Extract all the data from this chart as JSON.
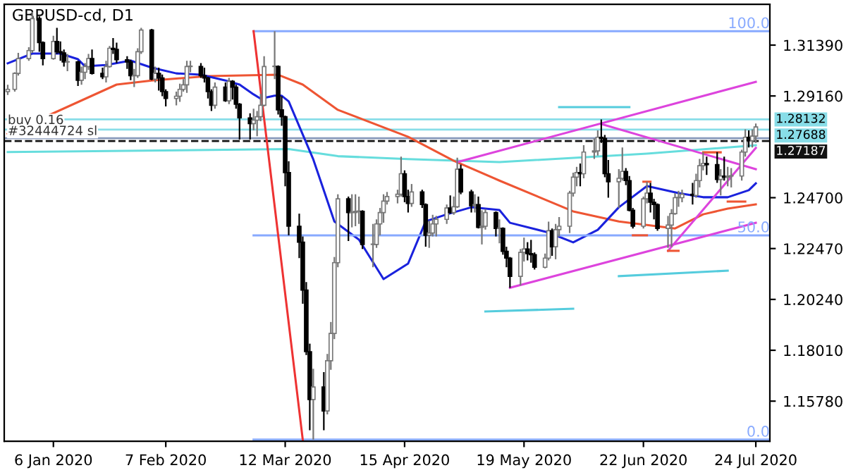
{
  "chart_data": {
    "type": "candlestick",
    "title": "GBPUSD-cd, D1",
    "x": [
      "2019-12-24",
      "2019-12-26",
      "2019-12-27",
      "2019-12-30",
      "2019-12-31",
      "2020-01-02",
      "2020-01-03",
      "2020-01-06",
      "2020-01-07",
      "2020-01-08",
      "2020-01-09",
      "2020-01-10",
      "2020-01-13",
      "2020-01-14",
      "2020-01-15",
      "2020-01-16",
      "2020-01-17",
      "2020-01-20",
      "2020-01-21",
      "2020-01-22",
      "2020-01-23",
      "2020-01-24",
      "2020-01-27",
      "2020-01-28",
      "2020-01-29",
      "2020-01-30",
      "2020-01-31",
      "2020-02-03",
      "2020-02-04",
      "2020-02-05",
      "2020-02-06",
      "2020-02-07",
      "2020-02-10",
      "2020-02-11",
      "2020-02-12",
      "2020-02-13",
      "2020-02-14",
      "2020-02-17",
      "2020-02-18",
      "2020-02-19",
      "2020-02-20",
      "2020-02-21",
      "2020-02-24",
      "2020-02-25",
      "2020-02-26",
      "2020-02-27",
      "2020-02-28",
      "2020-03-02",
      "2020-03-03",
      "2020-03-04",
      "2020-03-05",
      "2020-03-06",
      "2020-03-09",
      "2020-03-10",
      "2020-03-11",
      "2020-03-12",
      "2020-03-13",
      "2020-03-16",
      "2020-03-17",
      "2020-03-18",
      "2020-03-19",
      "2020-03-20",
      "2020-03-23",
      "2020-03-24",
      "2020-03-25",
      "2020-03-26",
      "2020-03-27",
      "2020-03-30",
      "2020-03-31",
      "2020-04-01",
      "2020-04-02",
      "2020-04-03",
      "2020-04-06",
      "2020-04-07",
      "2020-04-08",
      "2020-04-09",
      "2020-04-10",
      "2020-04-13",
      "2020-04-14",
      "2020-04-15",
      "2020-04-16",
      "2020-04-17",
      "2020-04-20",
      "2020-04-21",
      "2020-04-22",
      "2020-04-23",
      "2020-04-24",
      "2020-04-27",
      "2020-04-28",
      "2020-04-29",
      "2020-04-30",
      "2020-05-01",
      "2020-05-04",
      "2020-05-05",
      "2020-05-06",
      "2020-05-07",
      "2020-05-08",
      "2020-05-11",
      "2020-05-12",
      "2020-05-13",
      "2020-05-14",
      "2020-05-15",
      "2020-05-18",
      "2020-05-19",
      "2020-05-20",
      "2020-05-21",
      "2020-05-22",
      "2020-05-25",
      "2020-05-26",
      "2020-05-27",
      "2020-05-28",
      "2020-05-29",
      "2020-06-01",
      "2020-06-02",
      "2020-06-03",
      "2020-06-04",
      "2020-06-05",
      "2020-06-08",
      "2020-06-09",
      "2020-06-10",
      "2020-06-11",
      "2020-06-12",
      "2020-06-15",
      "2020-06-16",
      "2020-06-17",
      "2020-06-18",
      "2020-06-19",
      "2020-06-22",
      "2020-06-23",
      "2020-06-24",
      "2020-06-25",
      "2020-06-26",
      "2020-06-29",
      "2020-06-30",
      "2020-07-01",
      "2020-07-02",
      "2020-07-03",
      "2020-07-06",
      "2020-07-07",
      "2020-07-08",
      "2020-07-09",
      "2020-07-10",
      "2020-07-13",
      "2020-07-14",
      "2020-07-15",
      "2020-07-16",
      "2020-07-17",
      "2020-07-20",
      "2020-07-21",
      "2020-07-22",
      "2020-07-23",
      "2020-07-24"
    ],
    "ohlc": [
      [
        1.2935,
        1.2965,
        1.292,
        1.2945
      ],
      [
        1.2945,
        1.302,
        1.2935,
        1.3015
      ],
      [
        1.3015,
        1.3105,
        1.3005,
        1.308
      ],
      [
        1.308,
        1.313,
        1.307,
        1.3115
      ],
      [
        1.3115,
        1.3285,
        1.3105,
        1.3255
      ],
      [
        1.3255,
        1.3265,
        1.311,
        1.315
      ],
      [
        1.315,
        1.3155,
        1.305,
        1.308
      ],
      [
        1.308,
        1.318,
        1.3075,
        1.3155
      ],
      [
        1.3155,
        1.3215,
        1.31,
        1.311
      ],
      [
        1.311,
        1.3155,
        1.307,
        1.3105
      ],
      [
        1.3105,
        1.312,
        1.3045,
        1.3065
      ],
      [
        1.3065,
        1.31,
        1.3025,
        1.3065
      ],
      [
        1.3065,
        1.307,
        1.296,
        1.2985
      ],
      [
        1.2985,
        1.3045,
        1.2965,
        1.302
      ],
      [
        1.302,
        1.306,
        1.299,
        1.3045
      ],
      [
        1.3045,
        1.31,
        1.303,
        1.308
      ],
      [
        1.308,
        1.312,
        1.301,
        1.3015
      ],
      [
        1.3015,
        1.304,
        1.299,
        1.3
      ],
      [
        1.3,
        1.307,
        1.2975,
        1.3045
      ],
      [
        1.3045,
        1.3135,
        1.304,
        1.3125
      ],
      [
        1.3125,
        1.317,
        1.31,
        1.312
      ],
      [
        1.312,
        1.315,
        1.306,
        1.3075
      ],
      [
        1.3075,
        1.309,
        1.3035,
        1.3065
      ],
      [
        1.3065,
        1.3075,
        1.2985,
        1.3005
      ],
      [
        1.3005,
        1.3035,
        1.2955,
        1.3005
      ],
      [
        1.3005,
        1.3125,
        1.2995,
        1.311
      ],
      [
        1.311,
        1.3215,
        1.31,
        1.3205
      ],
      [
        1.3205,
        1.321,
        1.2985,
        1.299
      ],
      [
        1.299,
        1.3045,
        1.2975,
        1.3015
      ],
      [
        1.3015,
        1.304,
        1.294,
        1.2995
      ],
      [
        1.2995,
        1.301,
        1.2915,
        1.2935
      ],
      [
        1.2935,
        1.2945,
        1.287,
        1.2905
      ],
      [
        1.2905,
        1.2935,
        1.2875,
        1.2915
      ],
      [
        1.2915,
        1.297,
        1.289,
        1.2945
      ],
      [
        1.2945,
        1.299,
        1.2935,
        1.2965
      ],
      [
        1.2965,
        1.307,
        1.293,
        1.3045
      ],
      [
        1.3045,
        1.307,
        1.302,
        1.3045
      ],
      [
        1.3045,
        1.306,
        1.2995,
        1.3005
      ],
      [
        1.3005,
        1.304,
        1.2975,
        1.2995
      ],
      [
        1.2995,
        1.3,
        1.2905,
        1.2935
      ],
      [
        1.2935,
        1.2945,
        1.285,
        1.2875
      ],
      [
        1.2875,
        1.2975,
        1.286,
        1.2955
      ],
      [
        1.2955,
        1.2975,
        1.289,
        1.2895
      ],
      [
        1.2895,
        1.2995,
        1.288,
        1.298
      ],
      [
        1.298,
        1.2985,
        1.29,
        1.2955
      ],
      [
        1.2955,
        1.2965,
        1.286,
        1.288
      ],
      [
        1.288,
        1.2885,
        1.2725,
        1.282
      ],
      [
        1.282,
        1.284,
        1.2725,
        1.2795
      ],
      [
        1.2795,
        1.286,
        1.2765,
        1.281
      ],
      [
        1.281,
        1.285,
        1.274,
        1.2825
      ],
      [
        1.2825,
        1.2925,
        1.2805,
        1.2875
      ],
      [
        1.2875,
        1.309,
        1.287,
        1.3045
      ],
      [
        1.3045,
        1.32,
        1.299,
        1.3045
      ],
      [
        1.3045,
        1.305,
        1.2835,
        1.2855
      ],
      [
        1.2855,
        1.2915,
        1.2785,
        1.2825
      ],
      [
        1.2825,
        1.283,
        1.252,
        1.258
      ],
      [
        1.258,
        1.263,
        1.2305,
        1.2345
      ],
      [
        1.2345,
        1.24,
        1.2205,
        1.2275
      ],
      [
        1.2275,
        1.23,
        1.2005,
        1.2065
      ],
      [
        1.2065,
        1.21,
        1.178,
        1.1795
      ],
      [
        1.1795,
        1.183,
        1.145,
        1.1585
      ],
      [
        1.1585,
        1.172,
        1.1409,
        1.164
      ],
      [
        1.164,
        1.1705,
        1.145,
        1.1535
      ],
      [
        1.1535,
        1.1785,
        1.152,
        1.1755
      ],
      [
        1.1755,
        1.1925,
        1.1715,
        1.1875
      ],
      [
        1.1875,
        1.221,
        1.185,
        1.2185
      ],
      [
        1.2185,
        1.2485,
        1.2165,
        1.2465
      ],
      [
        1.2465,
        1.2475,
        1.228,
        1.2405
      ],
      [
        1.2405,
        1.2485,
        1.234,
        1.2405
      ],
      [
        1.2405,
        1.2485,
        1.2345,
        1.241
      ],
      [
        1.241,
        1.2475,
        1.2355,
        1.241
      ],
      [
        1.241,
        1.2415,
        1.2245,
        1.2265
      ],
      [
        1.2265,
        1.2355,
        1.2165,
        1.2265
      ],
      [
        1.2265,
        1.2375,
        1.225,
        1.2355
      ],
      [
        1.2355,
        1.2425,
        1.2305,
        1.2405
      ],
      [
        1.2405,
        1.2485,
        1.236,
        1.2455
      ],
      [
        1.2455,
        1.2495,
        1.244,
        1.2475
      ],
      [
        1.2475,
        1.2505,
        1.2445,
        1.2485
      ],
      [
        1.2485,
        1.265,
        1.2475,
        1.2575
      ],
      [
        1.2575,
        1.259,
        1.245,
        1.2475
      ],
      [
        1.2475,
        1.2505,
        1.2405,
        1.2445
      ],
      [
        1.2445,
        1.253,
        1.243,
        1.2495
      ],
      [
        1.2495,
        1.2505,
        1.2425,
        1.244
      ],
      [
        1.244,
        1.2445,
        1.2255,
        1.2305
      ],
      [
        1.2305,
        1.237,
        1.225,
        1.2315
      ],
      [
        1.2315,
        1.2395,
        1.23,
        1.2355
      ],
      [
        1.2355,
        1.239,
        1.23,
        1.2375
      ],
      [
        1.2375,
        1.244,
        1.2355,
        1.2425
      ],
      [
        1.2425,
        1.248,
        1.24,
        1.2405
      ],
      [
        1.2405,
        1.2475,
        1.2395,
        1.243
      ],
      [
        1.243,
        1.2645,
        1.2425,
        1.2595
      ],
      [
        1.2595,
        1.2615,
        1.2485,
        1.2495
      ],
      [
        1.2495,
        1.2505,
        1.2405,
        1.2435
      ],
      [
        1.2435,
        1.2485,
        1.2405,
        1.244
      ],
      [
        1.244,
        1.2475,
        1.2335,
        1.234
      ],
      [
        1.234,
        1.2415,
        1.2265,
        1.2345
      ],
      [
        1.2345,
        1.242,
        1.233,
        1.2405
      ],
      [
        1.2405,
        1.241,
        1.23,
        1.2335
      ],
      [
        1.2335,
        1.2375,
        1.227,
        1.2335
      ],
      [
        1.2335,
        1.234,
        1.222,
        1.2235
      ],
      [
        1.2235,
        1.2255,
        1.2165,
        1.2205
      ],
      [
        1.2205,
        1.221,
        1.2075,
        1.2125
      ],
      [
        1.2125,
        1.2245,
        1.2085,
        1.223
      ],
      [
        1.223,
        1.2295,
        1.219,
        1.2245
      ],
      [
        1.2245,
        1.2275,
        1.2195,
        1.2225
      ],
      [
        1.2225,
        1.2285,
        1.2185,
        1.222
      ],
      [
        1.222,
        1.223,
        1.2155,
        1.2165
      ],
      [
        1.2165,
        1.2225,
        1.216,
        1.2205
      ],
      [
        1.2205,
        1.2365,
        1.2195,
        1.2325
      ],
      [
        1.2325,
        1.2335,
        1.2215,
        1.2255
      ],
      [
        1.2255,
        1.2355,
        1.22,
        1.233
      ],
      [
        1.233,
        1.2385,
        1.23,
        1.2345
      ],
      [
        1.2345,
        1.25,
        1.2315,
        1.249
      ],
      [
        1.249,
        1.258,
        1.2475,
        1.256
      ],
      [
        1.256,
        1.2605,
        1.252,
        1.258
      ],
      [
        1.258,
        1.262,
        1.252,
        1.2575
      ],
      [
        1.2575,
        1.27,
        1.2555,
        1.267
      ],
      [
        1.267,
        1.273,
        1.264,
        1.2675
      ],
      [
        1.2675,
        1.2765,
        1.2655,
        1.2735
      ],
      [
        1.2735,
        1.2813,
        1.271,
        1.273
      ],
      [
        1.273,
        1.2745,
        1.256,
        1.2575
      ],
      [
        1.2575,
        1.2635,
        1.247,
        1.254
      ],
      [
        1.254,
        1.2595,
        1.2425,
        1.2555
      ],
      [
        1.2555,
        1.269,
        1.2545,
        1.2585
      ],
      [
        1.2585,
        1.26,
        1.2525,
        1.2545
      ],
      [
        1.2545,
        1.2565,
        1.241,
        1.2415
      ],
      [
        1.2415,
        1.2425,
        1.2335,
        1.2345
      ],
      [
        1.2345,
        1.2475,
        1.2335,
        1.2465
      ],
      [
        1.2465,
        1.254,
        1.2445,
        1.249
      ],
      [
        1.249,
        1.2535,
        1.2405,
        1.245
      ],
      [
        1.245,
        1.2465,
        1.2375,
        1.244
      ],
      [
        1.244,
        1.2445,
        1.2325,
        1.2335
      ],
      [
        1.2335,
        1.239,
        1.225,
        1.235
      ],
      [
        1.235,
        1.242,
        1.2255,
        1.24
      ],
      [
        1.24,
        1.249,
        1.2395,
        1.247
      ],
      [
        1.247,
        1.25,
        1.243,
        1.247
      ],
      [
        1.247,
        1.2505,
        1.245,
        1.2485
      ],
      [
        1.2485,
        1.2535,
        1.244,
        1.248
      ],
      [
        1.248,
        1.2575,
        1.247,
        1.2545
      ],
      [
        1.2545,
        1.264,
        1.2515,
        1.261
      ],
      [
        1.261,
        1.267,
        1.259,
        1.262
      ],
      [
        1.262,
        1.265,
        1.257,
        1.2615
      ],
      [
        1.2615,
        1.267,
        1.2535,
        1.255
      ],
      [
        1.255,
        1.2595,
        1.248,
        1.2565
      ],
      [
        1.2565,
        1.265,
        1.2545,
        1.256
      ],
      [
        1.256,
        1.2605,
        1.252,
        1.2565
      ],
      [
        1.2565,
        1.26,
        1.2515,
        1.2565
      ],
      [
        1.2565,
        1.268,
        1.2545,
        1.267
      ],
      [
        1.267,
        1.277,
        1.265,
        1.2735
      ],
      [
        1.2735,
        1.2765,
        1.269,
        1.272
      ],
      [
        1.272,
        1.277,
        1.269,
        1.274
      ],
      [
        1.274,
        1.2795,
        1.271,
        1.278
      ]
    ],
    "series": [
      {
        "type": "line",
        "color": "#66dddd",
        "x": [
          "2019-12-24",
          "2020-03-13",
          "2020-03-27",
          "2020-04-16",
          "2020-05-12",
          "2020-06-23",
          "2020-07-24"
        ],
        "values": [
          1.267,
          1.2683,
          1.2652,
          1.2639,
          1.2626,
          1.2663,
          1.27
        ]
      },
      {
        "type": "line",
        "color": "#ee5533",
        "x": [
          "2019-12-24",
          "2020-01-24",
          "2020-02-03",
          "2020-02-19",
          "2020-03-10",
          "2020-03-17",
          "2020-03-27",
          "2020-04-16",
          "2020-04-29",
          "2020-05-12",
          "2020-06-02",
          "2020-06-15",
          "2020-07-01",
          "2020-07-09",
          "2020-07-16",
          "2020-07-24"
        ],
        "values": [
          1.275,
          1.2966,
          1.2984,
          1.3003,
          1.3009,
          1.2966,
          1.2855,
          1.2737,
          1.2632,
          1.2545,
          1.241,
          1.2366,
          1.2335,
          1.2397,
          1.2422,
          1.2441
        ]
      },
      {
        "type": "line",
        "color": "#1a22dd",
        "x": [
          "2019-12-24",
          "2019-12-31",
          "2020-01-08",
          "2020-01-13",
          "2020-01-15",
          "2020-01-21",
          "2020-01-28",
          "2020-02-03",
          "2020-02-10",
          "2020-02-17",
          "2020-02-24",
          "2020-02-28",
          "2020-03-03",
          "2020-03-05",
          "2020-03-09",
          "2020-03-11",
          "2020-03-13",
          "2020-03-20",
          "2020-03-26",
          "2020-04-02",
          "2020-04-09",
          "2020-04-16",
          "2020-04-21",
          "2020-04-27",
          "2020-05-04",
          "2020-05-12",
          "2020-05-15",
          "2020-05-26",
          "2020-06-02",
          "2020-06-09",
          "2020-06-15",
          "2020-06-23",
          "2020-07-02",
          "2020-07-09",
          "2020-07-16",
          "2020-07-22",
          "2020-07-24"
        ],
        "values": [
          1.3059,
          1.3102,
          1.3102,
          1.3077,
          1.3046,
          1.3052,
          1.3071,
          1.304,
          1.3015,
          1.3009,
          1.2984,
          1.2966,
          1.2923,
          1.2904,
          1.2917,
          1.2917,
          1.2892,
          1.2638,
          1.2366,
          1.2286,
          1.2113,
          1.2181,
          1.2366,
          1.2397,
          1.2428,
          1.2416,
          1.236,
          1.2317,
          1.2274,
          1.2329,
          1.2428,
          1.2521,
          1.249,
          1.2472,
          1.2472,
          1.2503,
          1.2533
        ]
      },
      {
        "type": "line",
        "color": "#88aaff",
        "x": [
          "2020-03-03",
          "2020-07-28"
        ],
        "values": [
          1.32,
          1.32
        ]
      },
      {
        "type": "line",
        "color": "#88aaff",
        "x": [
          "2020-03-03",
          "2020-07-28"
        ],
        "values": [
          1.2305,
          1.2305
        ]
      },
      {
        "type": "line",
        "color": "#88aaff",
        "x": [
          "2020-03-03",
          "2020-07-28"
        ],
        "values": [
          1.1409,
          1.1409
        ]
      },
      {
        "type": "line",
        "color": "#ee3333",
        "x": [
          "2020-03-03",
          "2020-03-17"
        ],
        "values": [
          1.32,
          1.1409
        ]
      },
      {
        "type": "line",
        "color": "#dd44dd",
        "x": [
          "2020-04-30",
          "2020-07-24"
        ],
        "values": [
          1.2626,
          1.2978
        ]
      },
      {
        "type": "line",
        "color": "#dd44dd",
        "x": [
          "2020-06-10",
          "2020-07-24"
        ],
        "values": [
          1.2793,
          1.2595
        ]
      },
      {
        "type": "line",
        "color": "#dd44dd",
        "x": [
          "2020-05-15",
          "2020-07-24"
        ],
        "values": [
          1.2075,
          1.236
        ]
      },
      {
        "type": "line",
        "color": "#dd44dd",
        "x": [
          "2020-06-29",
          "2020-07-24"
        ],
        "values": [
          1.2237,
          1.2688
        ]
      },
      {
        "type": "line",
        "color": "#55ccdd",
        "x": [
          "2020-05-29",
          "2020-06-18"
        ],
        "values": [
          1.2867,
          1.2867
        ]
      },
      {
        "type": "line",
        "color": "#55ccdd",
        "x": [
          "2020-05-08",
          "2020-06-02"
        ],
        "values": [
          1.1971,
          1.1983
        ]
      },
      {
        "type": "line",
        "color": "#55ccdd",
        "x": [
          "2020-06-15",
          "2020-07-16"
        ],
        "values": [
          1.2126,
          1.215
        ]
      },
      {
        "type": "line",
        "color": "#ee5533",
        "x": [
          "2020-06-22",
          "2020-06-24"
        ],
        "values": [
          1.254,
          1.254
        ]
      },
      {
        "type": "line",
        "color": "#ee5533",
        "x": [
          "2020-06-19",
          "2020-06-23"
        ],
        "values": [
          1.2305,
          1.2305
        ]
      },
      {
        "type": "line",
        "color": "#ee5533",
        "x": [
          "2020-06-29",
          "2020-07-02"
        ],
        "values": [
          1.2237,
          1.2237
        ]
      },
      {
        "type": "line",
        "color": "#ee5533",
        "x": [
          "2020-07-09",
          "2020-07-14"
        ],
        "values": [
          1.2669,
          1.2669
        ]
      },
      {
        "type": "line",
        "color": "#ee5533",
        "x": [
          "2020-07-16",
          "2020-07-21"
        ],
        "values": [
          1.2453,
          1.2453
        ]
      }
    ],
    "ref_lines": [
      {
        "axis": "y",
        "value": 1.28132,
        "label": "1.28132",
        "color": "#88dde8"
      },
      {
        "axis": "y",
        "value": 1.27688,
        "label": "1.27688",
        "color": "#88dde8"
      },
      {
        "axis": "y",
        "value": 1.2731,
        "label": null,
        "color": "#8899bb"
      },
      {
        "axis": "y",
        "value": 1.27187,
        "label": "1.27187",
        "color": "#111111",
        "line_style": "dashed"
      }
    ],
    "annotations": [
      {
        "text": "buy 0.16",
        "x": "2019-12-24",
        "y": 1.2781
      },
      {
        "text": "#32444724 sl",
        "x": "2019-12-24",
        "y": 1.2733
      },
      {
        "text": "100.0",
        "x": "2020-07-28",
        "y": 1.32
      },
      {
        "text": "50.0",
        "x": "2020-07-28",
        "y": 1.2305
      },
      {
        "text": "0.0",
        "x": "2020-07-28",
        "y": 1.1409
      }
    ],
    "xlim": [
      "2019-12-23",
      "2020-07-28"
    ],
    "xticks": [
      {
        "value": "2020-01-06",
        "label": "6 Jan 2020"
      },
      {
        "value": "2020-02-07",
        "label": "7 Feb 2020"
      },
      {
        "value": "2020-03-12",
        "label": "12 Mar 2020"
      },
      {
        "value": "2020-04-15",
        "label": "15 Apr 2020"
      },
      {
        "value": "2020-05-19",
        "label": "19 May 2020"
      },
      {
        "value": "2020-06-22",
        "label": "22 Jun 2020"
      },
      {
        "value": "2020-07-24",
        "label": "24 Jul 2020"
      }
    ],
    "ylim": [
      1.1402,
      1.3318
    ],
    "yticks": [
      {
        "value": 1.1578,
        "label": "1.15780"
      },
      {
        "value": 1.1801,
        "label": "1.18010"
      },
      {
        "value": 1.2024,
        "label": "1.20240"
      },
      {
        "value": 1.2247,
        "label": "1.22470"
      },
      {
        "value": 1.247,
        "label": "1.24700"
      },
      {
        "value": 1.2916,
        "label": "1.29160"
      },
      {
        "value": 1.3139,
        "label": "1.31390"
      }
    ]
  }
}
